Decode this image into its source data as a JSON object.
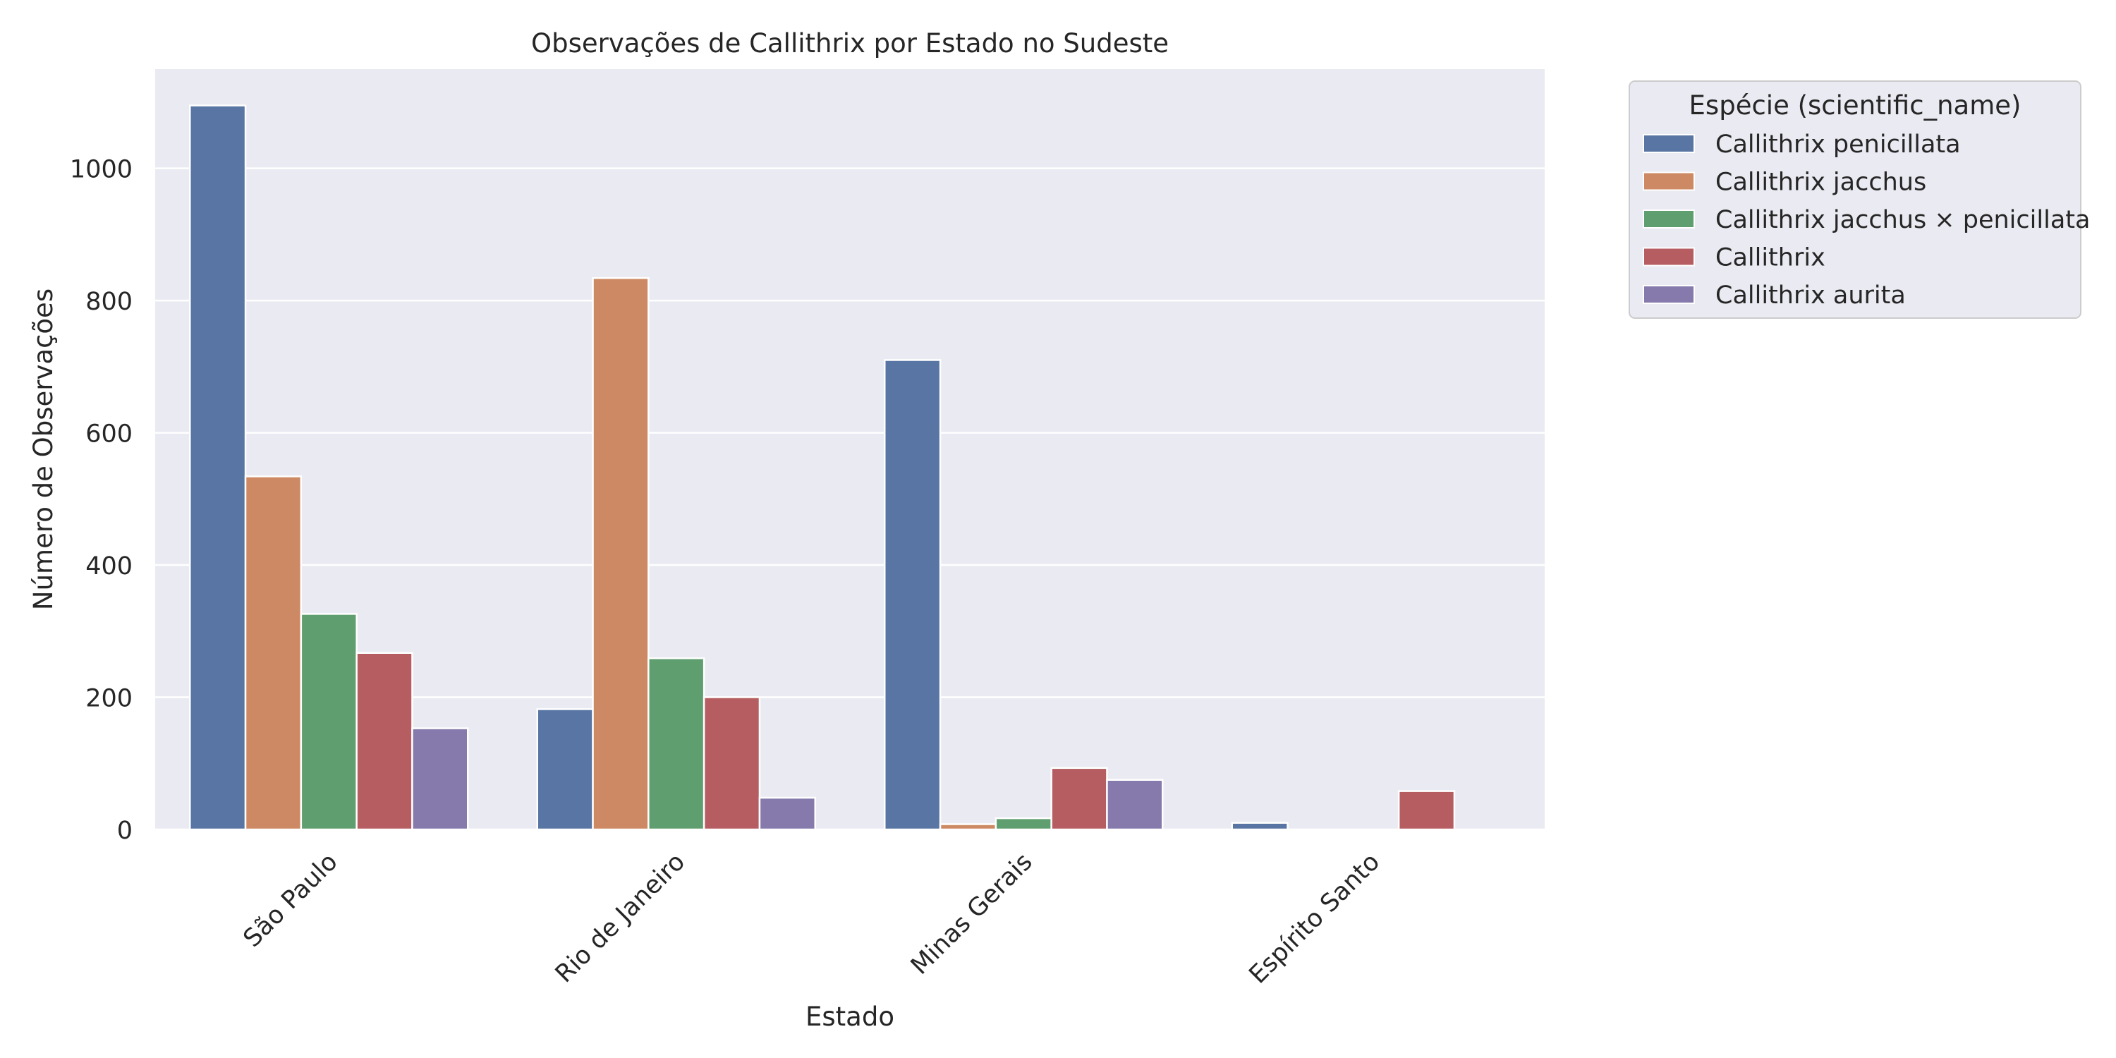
{
  "chart_data": {
    "type": "bar",
    "title": "Observações de Callithrix por Estado no Sudeste",
    "xlabel": "Estado",
    "ylabel": "Número de Observações",
    "categories": [
      "São Paulo",
      "Rio de Janeiro",
      "Minas Gerais",
      "Espírito Santo"
    ],
    "ylim": [
      0,
      1150
    ],
    "yticks": [
      0,
      200,
      400,
      600,
      800,
      1000
    ],
    "grid": true,
    "legend": {
      "title": "Espécie (scientific_name)",
      "placement": "outside-top-right"
    },
    "series": [
      {
        "name": "Callithrix penicillata",
        "color": "#5875a4",
        "values": [
          1095,
          182,
          710,
          10
        ]
      },
      {
        "name": "Callithrix jacchus",
        "color": "#cc8963",
        "values": [
          534,
          834,
          8,
          0
        ]
      },
      {
        "name": "Callithrix jacchus × penicillata",
        "color": "#5f9e6e",
        "values": [
          326,
          259,
          17,
          0
        ]
      },
      {
        "name": "Callithrix",
        "color": "#b55d60",
        "values": [
          267,
          200,
          93,
          58
        ]
      },
      {
        "name": "Callithrix aurita",
        "color": "#857aab",
        "values": [
          153,
          48,
          75,
          0
        ]
      }
    ]
  }
}
